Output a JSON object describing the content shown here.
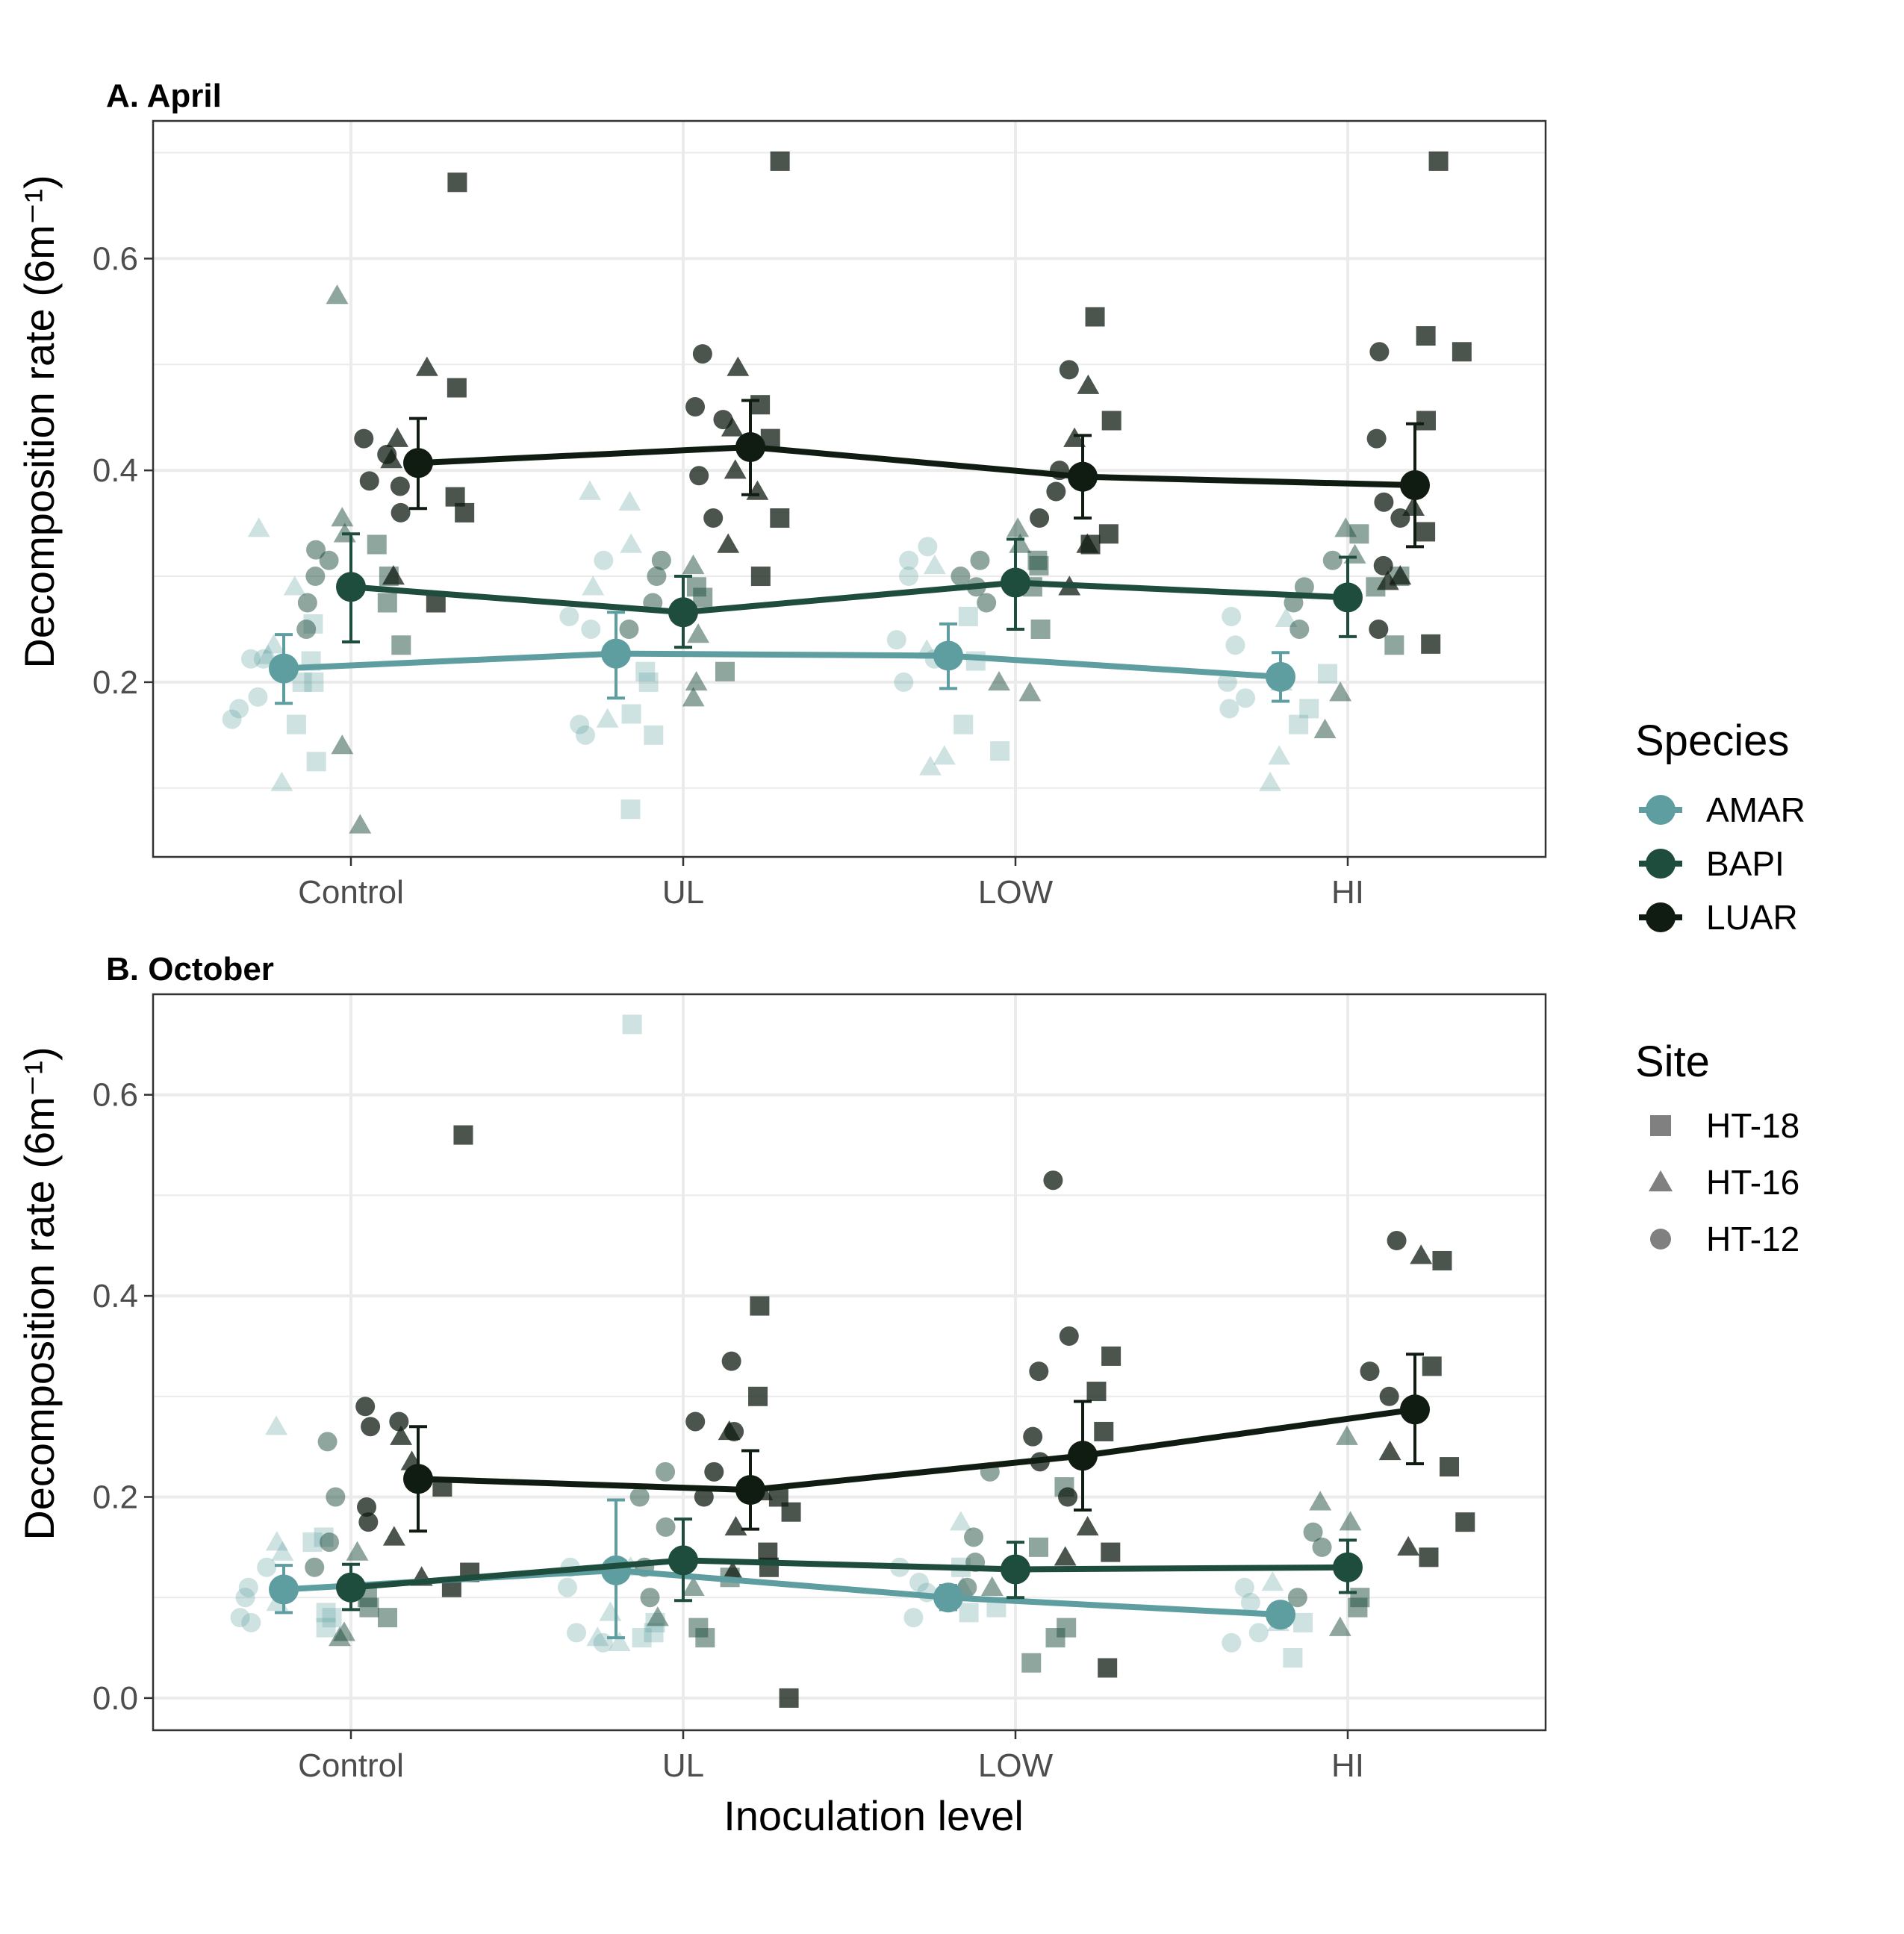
{
  "colors": {
    "AMAR": "#5e9ea0",
    "BAPI": "#1f4d3d",
    "LUAR": "#101c12",
    "site_marker": "#808080",
    "grid": "#ebebeb",
    "border": "#333333"
  },
  "legends": {
    "species": {
      "title": "Species",
      "items": [
        "AMAR",
        "BAPI",
        "LUAR"
      ]
    },
    "site": {
      "title": "Site",
      "items": [
        {
          "label": "HT-18",
          "shape": "square"
        },
        {
          "label": "HT-16",
          "shape": "triangle"
        },
        {
          "label": "HT-12",
          "shape": "circle"
        }
      ]
    }
  },
  "chart_data": [
    {
      "type": "scatter",
      "title": "A.  April",
      "xlabel": "",
      "ylabel": "Decomposition rate (6m⁻¹)",
      "categories": [
        "Control",
        "UL",
        "LOW",
        "HI"
      ],
      "ylim": [
        0.035,
        0.73
      ],
      "yticks": [
        "0.2",
        "0.4",
        "0.6"
      ],
      "grid": true,
      "series": [
        {
          "name": "AMAR",
          "mean": [
            0.213,
            0.227,
            0.225,
            0.205
          ],
          "lower": [
            0.18,
            0.185,
            0.194,
            0.182
          ],
          "upper": [
            0.245,
            0.266,
            0.255,
            0.228
          ]
        },
        {
          "name": "BAPI",
          "mean": [
            0.29,
            0.266,
            0.294,
            0.28
          ],
          "lower": [
            0.238,
            0.233,
            0.25,
            0.243
          ],
          "upper": [
            0.34,
            0.3,
            0.335,
            0.318
          ]
        },
        {
          "name": "LUAR",
          "mean": [
            0.407,
            0.422,
            0.394,
            0.386
          ],
          "lower": [
            0.364,
            0.377,
            0.355,
            0.328
          ],
          "upper": [
            0.449,
            0.466,
            0.433,
            0.444
          ]
        }
      ],
      "observations": [
        {
          "species": "AMAR",
          "category": "Control",
          "site": "HT-18",
          "values": [
            0.255,
            0.125,
            0.16,
            0.2,
            0.22,
            0.2
          ]
        },
        {
          "species": "AMAR",
          "category": "Control",
          "site": "HT-16",
          "values": [
            0.345,
            0.29,
            0.105,
            0.235,
            0.225
          ]
        },
        {
          "species": "AMAR",
          "category": "Control",
          "site": "HT-12",
          "values": [
            0.222,
            0.186,
            0.165,
            0.222,
            0.175
          ]
        },
        {
          "species": "AMAR",
          "category": "UL",
          "site": "HT-18",
          "values": [
            0.15,
            0.08,
            0.2,
            0.21,
            0.17
          ]
        },
        {
          "species": "AMAR",
          "category": "UL",
          "site": "HT-16",
          "values": [
            0.38,
            0.37,
            0.33,
            0.29,
            0.165
          ]
        },
        {
          "species": "AMAR",
          "category": "UL",
          "site": "HT-12",
          "values": [
            0.315,
            0.262,
            0.16,
            0.15,
            0.25
          ]
        },
        {
          "species": "AMAR",
          "category": "LOW",
          "site": "HT-18",
          "values": [
            0.262,
            0.16,
            0.135,
            0.22
          ]
        },
        {
          "species": "AMAR",
          "category": "LOW",
          "site": "HT-16",
          "values": [
            0.12,
            0.13,
            0.31,
            0.23
          ]
        },
        {
          "species": "AMAR",
          "category": "LOW",
          "site": "HT-12",
          "values": [
            0.328,
            0.315,
            0.3,
            0.24,
            0.222,
            0.2
          ]
        },
        {
          "species": "AMAR",
          "category": "HI",
          "site": "HT-18",
          "values": [
            0.208,
            0.175,
            0.16
          ]
        },
        {
          "species": "AMAR",
          "category": "HI",
          "site": "HT-16",
          "values": [
            0.13,
            0.105,
            0.26,
            0.2
          ]
        },
        {
          "species": "AMAR",
          "category": "HI",
          "site": "HT-12",
          "values": [
            0.262,
            0.235,
            0.185,
            0.175,
            0.2
          ]
        },
        {
          "species": "BAPI",
          "category": "Control",
          "site": "HT-18",
          "values": [
            0.33,
            0.3,
            0.275,
            0.235
          ]
        },
        {
          "species": "BAPI",
          "category": "Control",
          "site": "HT-16",
          "values": [
            0.565,
            0.355,
            0.34,
            0.14,
            0.065
          ]
        },
        {
          "species": "BAPI",
          "category": "Control",
          "site": "HT-12",
          "values": [
            0.325,
            0.3,
            0.275,
            0.25,
            0.315
          ]
        },
        {
          "species": "BAPI",
          "category": "UL",
          "site": "HT-18",
          "values": [
            0.29,
            0.28,
            0.21
          ]
        },
        {
          "species": "BAPI",
          "category": "UL",
          "site": "HT-16",
          "values": [
            0.31,
            0.245,
            0.2,
            0.185
          ]
        },
        {
          "species": "BAPI",
          "category": "UL",
          "site": "HT-12",
          "values": [
            0.315,
            0.3,
            0.275,
            0.25
          ]
        },
        {
          "species": "BAPI",
          "category": "LOW",
          "site": "HT-18",
          "values": [
            0.315,
            0.31,
            0.29,
            0.25
          ]
        },
        {
          "species": "BAPI",
          "category": "LOW",
          "site": "HT-16",
          "values": [
            0.345,
            0.33,
            0.2,
            0.19
          ]
        },
        {
          "species": "BAPI",
          "category": "LOW",
          "site": "HT-12",
          "values": [
            0.3,
            0.29,
            0.275,
            0.315
          ]
        },
        {
          "species": "BAPI",
          "category": "HI",
          "site": "HT-18",
          "values": [
            0.34,
            0.3,
            0.29,
            0.235
          ]
        },
        {
          "species": "BAPI",
          "category": "HI",
          "site": "HT-16",
          "values": [
            0.345,
            0.19,
            0.155,
            0.32
          ]
        },
        {
          "species": "BAPI",
          "category": "HI",
          "site": "HT-12",
          "values": [
            0.315,
            0.29,
            0.275,
            0.25
          ]
        },
        {
          "species": "LUAR",
          "category": "Control",
          "site": "HT-18",
          "values": [
            0.672,
            0.478,
            0.375,
            0.36,
            0.275
          ]
        },
        {
          "species": "LUAR",
          "category": "Control",
          "site": "HT-16",
          "values": [
            0.497,
            0.43,
            0.41,
            0.3
          ]
        },
        {
          "species": "LUAR",
          "category": "Control",
          "site": "HT-12",
          "values": [
            0.43,
            0.415,
            0.385,
            0.36,
            0.39
          ]
        },
        {
          "species": "LUAR",
          "category": "UL",
          "site": "HT-18",
          "values": [
            0.692,
            0.462,
            0.43,
            0.355,
            0.3
          ]
        },
        {
          "species": "LUAR",
          "category": "UL",
          "site": "HT-16",
          "values": [
            0.497,
            0.44,
            0.4,
            0.38,
            0.33
          ]
        },
        {
          "species": "LUAR",
          "category": "UL",
          "site": "HT-12",
          "values": [
            0.51,
            0.46,
            0.448,
            0.395,
            0.355
          ]
        },
        {
          "species": "LUAR",
          "category": "LOW",
          "site": "HT-18",
          "values": [
            0.545,
            0.447,
            0.34,
            0.33
          ]
        },
        {
          "species": "LUAR",
          "category": "LOW",
          "site": "HT-16",
          "values": [
            0.48,
            0.43,
            0.33,
            0.29
          ]
        },
        {
          "species": "LUAR",
          "category": "LOW",
          "site": "HT-12",
          "values": [
            0.495,
            0.4,
            0.38,
            0.355
          ]
        },
        {
          "species": "LUAR",
          "category": "HI",
          "site": "HT-18",
          "values": [
            0.692,
            0.527,
            0.512,
            0.447,
            0.342,
            0.236
          ]
        },
        {
          "species": "LUAR",
          "category": "HI",
          "site": "HT-16",
          "values": [
            0.3,
            0.295,
            0.365
          ]
        },
        {
          "species": "LUAR",
          "category": "HI",
          "site": "HT-12",
          "values": [
            0.512,
            0.43,
            0.37,
            0.355,
            0.31,
            0.25
          ]
        }
      ]
    },
    {
      "type": "scatter",
      "title": "B. October",
      "xlabel": "Inoculation level",
      "ylabel": "Decomposition rate (6m⁻¹)",
      "categories": [
        "Control",
        "UL",
        "LOW",
        "HI"
      ],
      "ylim": [
        -0.032,
        0.7
      ],
      "yticks": [
        "0.0",
        "0.2",
        "0.4",
        "0.6"
      ],
      "grid": true,
      "series": [
        {
          "name": "AMAR",
          "mean": [
            0.108,
            0.127,
            0.1,
            0.083
          ],
          "lower": [
            0.085,
            0.06,
            0.088,
            0.072
          ],
          "upper": [
            0.132,
            0.197,
            0.112,
            0.094
          ]
        },
        {
          "name": "BAPI",
          "mean": [
            0.11,
            0.137,
            0.128,
            0.13
          ],
          "lower": [
            0.088,
            0.097,
            0.1,
            0.105
          ],
          "upper": [
            0.133,
            0.178,
            0.155,
            0.157
          ]
        },
        {
          "name": "LUAR",
          "mean": [
            0.218,
            0.207,
            0.241,
            0.287
          ],
          "lower": [
            0.166,
            0.168,
            0.187,
            0.233
          ],
          "upper": [
            0.27,
            0.246,
            0.295,
            0.342
          ]
        }
      ],
      "observations": [
        {
          "species": "AMAR",
          "category": "Control",
          "site": "HT-18",
          "values": [
            0.16,
            0.155,
            0.085,
            0.08,
            0.07
          ]
        },
        {
          "species": "AMAR",
          "category": "Control",
          "site": "HT-16",
          "values": [
            0.27,
            0.155,
            0.145,
            0.095
          ]
        },
        {
          "species": "AMAR",
          "category": "Control",
          "site": "HT-12",
          "values": [
            0.13,
            0.1,
            0.08,
            0.11,
            0.075
          ]
        },
        {
          "species": "AMAR",
          "category": "UL",
          "site": "HT-18",
          "values": [
            0.67,
            0.065,
            0.06,
            0.075
          ]
        },
        {
          "species": "AMAR",
          "category": "UL",
          "site": "HT-16",
          "values": [
            0.13,
            0.085,
            0.06,
            0.055
          ]
        },
        {
          "species": "AMAR",
          "category": "UL",
          "site": "HT-12",
          "values": [
            0.13,
            0.11,
            0.065,
            0.055
          ]
        },
        {
          "species": "AMAR",
          "category": "LOW",
          "site": "HT-18",
          "values": [
            0.09,
            0.085,
            0.13
          ]
        },
        {
          "species": "AMAR",
          "category": "LOW",
          "site": "HT-16",
          "values": [
            0.175,
            0.11
          ]
        },
        {
          "species": "AMAR",
          "category": "LOW",
          "site": "HT-12",
          "values": [
            0.13,
            0.115,
            0.105,
            0.08
          ]
        },
        {
          "species": "AMAR",
          "category": "HI",
          "site": "HT-18",
          "values": [
            0.075,
            0.04
          ]
        },
        {
          "species": "AMAR",
          "category": "HI",
          "site": "HT-16",
          "values": [
            0.115,
            0.075
          ]
        },
        {
          "species": "AMAR",
          "category": "HI",
          "site": "HT-12",
          "values": [
            0.11,
            0.095,
            0.065,
            0.055
          ]
        },
        {
          "species": "BAPI",
          "category": "Control",
          "site": "HT-18",
          "values": [
            0.1,
            0.09,
            0.08
          ]
        },
        {
          "species": "BAPI",
          "category": "Control",
          "site": "HT-16",
          "values": [
            0.145,
            0.065,
            0.06
          ]
        },
        {
          "species": "BAPI",
          "category": "Control",
          "site": "HT-12",
          "values": [
            0.255,
            0.2,
            0.155,
            0.13
          ]
        },
        {
          "species": "BAPI",
          "category": "UL",
          "site": "HT-18",
          "values": [
            0.12,
            0.07,
            0.06
          ]
        },
        {
          "species": "BAPI",
          "category": "UL",
          "site": "HT-16",
          "values": [
            0.11,
            0.08
          ]
        },
        {
          "species": "BAPI",
          "category": "UL",
          "site": "HT-12",
          "values": [
            0.225,
            0.2,
            0.17,
            0.13,
            0.1
          ]
        },
        {
          "species": "BAPI",
          "category": "LOW",
          "site": "HT-18",
          "values": [
            0.21,
            0.15,
            0.07,
            0.06,
            0.035
          ]
        },
        {
          "species": "BAPI",
          "category": "LOW",
          "site": "HT-16",
          "values": [
            0.11
          ]
        },
        {
          "species": "BAPI",
          "category": "LOW",
          "site": "HT-12",
          "values": [
            0.225,
            0.16,
            0.135,
            0.11
          ]
        },
        {
          "species": "BAPI",
          "category": "HI",
          "site": "HT-18",
          "values": [
            0.1,
            0.09
          ]
        },
        {
          "species": "BAPI",
          "category": "HI",
          "site": "HT-16",
          "values": [
            0.26,
            0.195,
            0.175,
            0.07
          ]
        },
        {
          "species": "BAPI",
          "category": "HI",
          "site": "HT-12",
          "values": [
            0.165,
            0.15,
            0.1
          ]
        },
        {
          "species": "LUAR",
          "category": "Control",
          "site": "HT-18",
          "values": [
            0.56,
            0.21,
            0.125,
            0.11
          ]
        },
        {
          "species": "LUAR",
          "category": "Control",
          "site": "HT-16",
          "values": [
            0.26,
            0.235,
            0.16,
            0.12
          ]
        },
        {
          "species": "LUAR",
          "category": "Control",
          "site": "HT-12",
          "values": [
            0.29,
            0.275,
            0.27,
            0.19,
            0.175
          ]
        },
        {
          "species": "LUAR",
          "category": "UL",
          "site": "HT-18",
          "values": [
            0.39,
            0.3,
            0.2,
            0.185,
            0.145,
            0.13,
            0.0
          ]
        },
        {
          "species": "LUAR",
          "category": "UL",
          "site": "HT-16",
          "values": [
            0.265,
            0.205,
            0.17,
            0.125
          ]
        },
        {
          "species": "LUAR",
          "category": "UL",
          "site": "HT-12",
          "values": [
            0.335,
            0.275,
            0.265,
            0.225,
            0.2
          ]
        },
        {
          "species": "LUAR",
          "category": "LOW",
          "site": "HT-18",
          "values": [
            0.34,
            0.305,
            0.265,
            0.145,
            0.03
          ]
        },
        {
          "species": "LUAR",
          "category": "LOW",
          "site": "HT-16",
          "values": [
            0.17,
            0.14
          ]
        },
        {
          "species": "LUAR",
          "category": "LOW",
          "site": "HT-12",
          "values": [
            0.515,
            0.36,
            0.325,
            0.26,
            0.235,
            0.2
          ]
        },
        {
          "species": "LUAR",
          "category": "HI",
          "site": "HT-18",
          "values": [
            0.435,
            0.33,
            0.23,
            0.175,
            0.14
          ]
        },
        {
          "species": "LUAR",
          "category": "HI",
          "site": "HT-16",
          "values": [
            0.44,
            0.245,
            0.15
          ]
        },
        {
          "species": "LUAR",
          "category": "HI",
          "site": "HT-12",
          "values": [
            0.455,
            0.325,
            0.3
          ]
        }
      ]
    }
  ]
}
